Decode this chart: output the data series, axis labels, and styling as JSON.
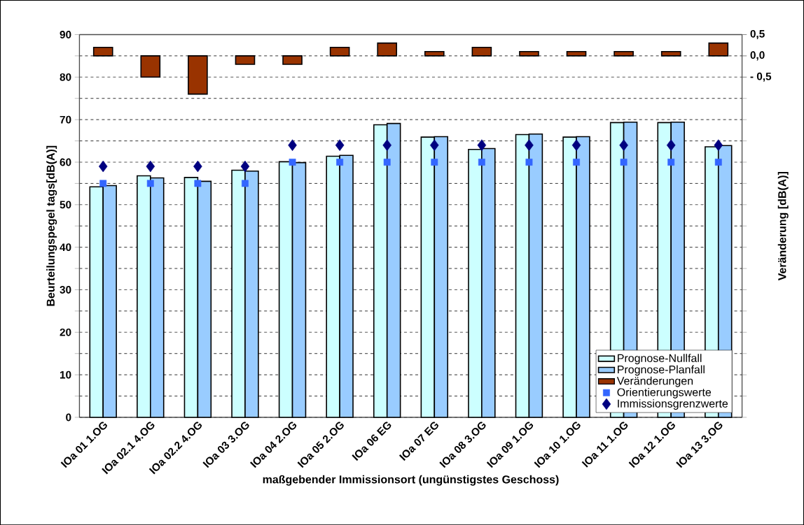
{
  "chart_data": {
    "type": "bar",
    "xlabel": "maßgebender Immissionsort (ungünstigstes Geschoss)",
    "ylabel": "Beurteilungspegel tags[dB(A)]",
    "y2label": "Veränderung [dB(A)]",
    "categories": [
      "IOa 01 1.OG",
      "IOa 02.1 4.OG",
      "IOa 02.2 4.OG",
      "IOa 03 3.OG",
      "IOa 04 2.OG",
      "IOa 05 2.OG",
      "IOa 06 EG",
      "IOa 07 EG",
      "IOa 08 3.OG",
      "IOa 09 1.OG",
      "IOa 10 1.OG",
      "IOa 11 1.OG",
      "IOa 12 1.OG",
      "IOa 13 3.OG"
    ],
    "series": [
      {
        "name": "Prognose-Nullfall",
        "color": "#ccffff",
        "values": [
          54.2,
          56.8,
          56.4,
          58.1,
          60.1,
          61.4,
          68.8,
          65.9,
          63.0,
          66.5,
          65.9,
          69.3,
          69.3,
          63.6
        ]
      },
      {
        "name": "Prognose-Planfall",
        "color": "#99ccff",
        "values": [
          54.5,
          56.3,
          55.5,
          57.9,
          59.9,
          61.6,
          69.1,
          66.0,
          63.2,
          66.6,
          66.0,
          69.4,
          69.4,
          63.9
        ]
      },
      {
        "name": "Veränderungen",
        "axis": "y2",
        "color": "#993300",
        "values": [
          0.2,
          -0.5,
          -0.9,
          -0.2,
          -0.2,
          0.2,
          0.3,
          0.1,
          0.2,
          0.1,
          0.1,
          0.1,
          0.1,
          0.3
        ]
      },
      {
        "name": "Orientierungswerte",
        "type": "scatter",
        "marker": "square",
        "color": "#3366ff",
        "values": [
          55,
          55,
          55,
          55,
          60,
          60,
          60,
          60,
          60,
          60,
          60,
          60,
          60,
          60
        ]
      },
      {
        "name": "Immissionsgrenzwerte",
        "type": "scatter",
        "marker": "diamond",
        "color": "#000080",
        "values": [
          59,
          59,
          59,
          59,
          64,
          64,
          64,
          64,
          64,
          64,
          64,
          64,
          64,
          64
        ]
      }
    ],
    "ylim": [
      0,
      90
    ],
    "yticks": [
      0,
      10,
      20,
      30,
      40,
      50,
      60,
      70,
      80,
      90
    ],
    "y2lim": [
      -8.5,
      0.5
    ],
    "y2ticks": [
      {
        "value": 0.5,
        "label": "0,5"
      },
      {
        "value": 0,
        "label": "0,0"
      },
      {
        "value": -0.5,
        "label": "- 0,5"
      }
    ],
    "grid": "y",
    "legend": "bottom right"
  }
}
